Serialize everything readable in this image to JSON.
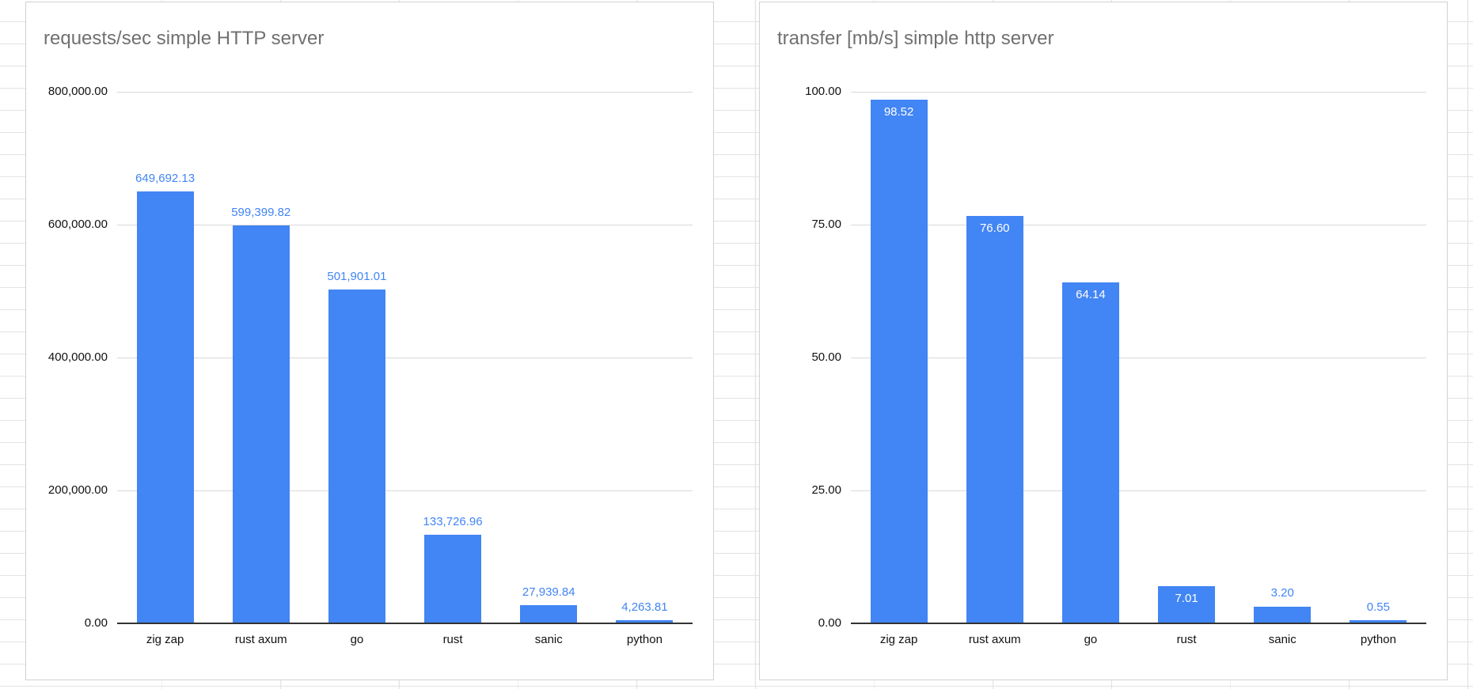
{
  "spreadsheet": {
    "gridline_color": "#e3e3e3",
    "background": "#ffffff"
  },
  "chart_data": [
    {
      "type": "bar",
      "title": "requests/sec simple HTTP server",
      "categories": [
        "zig zap",
        "rust axum",
        "go",
        "rust",
        "sanic",
        "python"
      ],
      "values": [
        649692.13,
        599399.82,
        501901.01,
        133726.96,
        27939.84,
        4263.81
      ],
      "value_labels": [
        "649,692.13",
        "599,399.82",
        "501,901.01",
        "133,726.96",
        "27,939.84",
        "4,263.81"
      ],
      "y_ticks": [
        {
          "label": "0.00",
          "value": 0
        },
        {
          "label": "200,000.00",
          "value": 200000
        },
        {
          "label": "400,000.00",
          "value": 400000
        },
        {
          "label": "600,000.00",
          "value": 600000
        },
        {
          "label": "800,000.00",
          "value": 800000
        }
      ],
      "ylim": [
        0,
        800000
      ],
      "xlabel": "",
      "ylabel": "",
      "grid": true,
      "legend": "none",
      "bar_color": "#4285f4",
      "label_placement": "above",
      "label_color": "#4285f4",
      "inside_label_color": "#ffffff"
    },
    {
      "type": "bar",
      "title": "transfer [mb/s] simple http server",
      "categories": [
        "zig zap",
        "rust axum",
        "go",
        "rust",
        "sanic",
        "python"
      ],
      "values": [
        98.52,
        76.6,
        64.14,
        7.01,
        3.2,
        0.55
      ],
      "value_labels": [
        "98.52",
        "76.60",
        "64.14",
        "7.01",
        "3.20",
        "0.55"
      ],
      "y_ticks": [
        {
          "label": "0.00",
          "value": 0
        },
        {
          "label": "25.00",
          "value": 25
        },
        {
          "label": "50.00",
          "value": 50
        },
        {
          "label": "75.00",
          "value": 75
        },
        {
          "label": "100.00",
          "value": 100
        }
      ],
      "ylim": [
        0,
        100
      ],
      "xlabel": "",
      "ylabel": "",
      "grid": true,
      "legend": "none",
      "bar_color": "#4285f4",
      "label_placement": "inside",
      "label_color": "#4285f4",
      "inside_label_color": "#ffffff"
    }
  ]
}
